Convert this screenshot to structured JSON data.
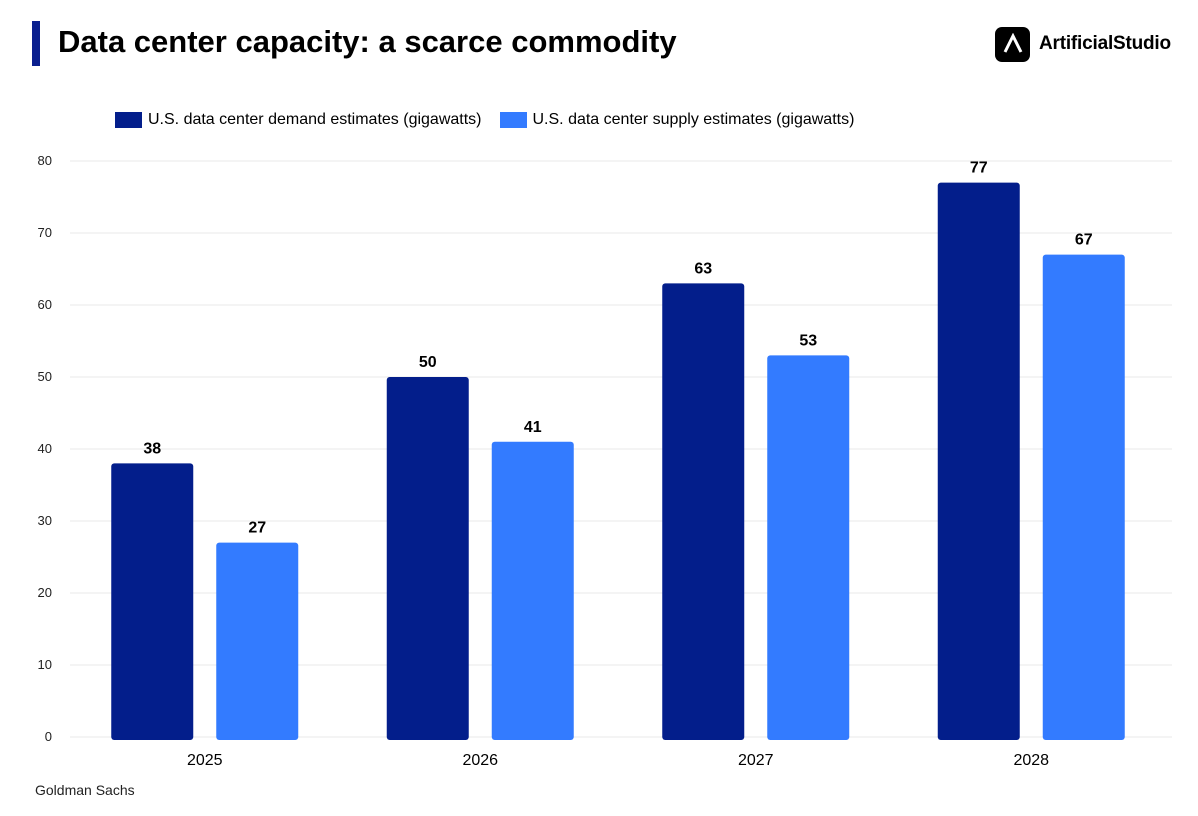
{
  "header": {
    "title": "Data center capacity: a scarce commodity",
    "accent_color": "#0a1f8f"
  },
  "brand": {
    "name": "ArtificialStudio",
    "icon": "artificialstudio-logo-icon"
  },
  "source": "Goldman Sachs",
  "chart_data": {
    "type": "bar",
    "categories": [
      "2025",
      "2026",
      "2027",
      "2028"
    ],
    "series": [
      {
        "name": "U.S. data center demand estimates (gigawatts)",
        "values": [
          38,
          50,
          63,
          77
        ],
        "color": "#031e8b"
      },
      {
        "name": "U.S. data center supply estimates (gigawatts)",
        "values": [
          27,
          41,
          53,
          67
        ],
        "color": "#337bff"
      }
    ],
    "title": "Data center capacity: a scarce commodity",
    "xlabel": "",
    "ylabel": "",
    "ylim": [
      0,
      80
    ],
    "yticks": [
      0,
      10,
      20,
      30,
      40,
      50,
      60,
      70,
      80
    ],
    "grid": true,
    "legend": "top-left",
    "data_labels": true
  }
}
